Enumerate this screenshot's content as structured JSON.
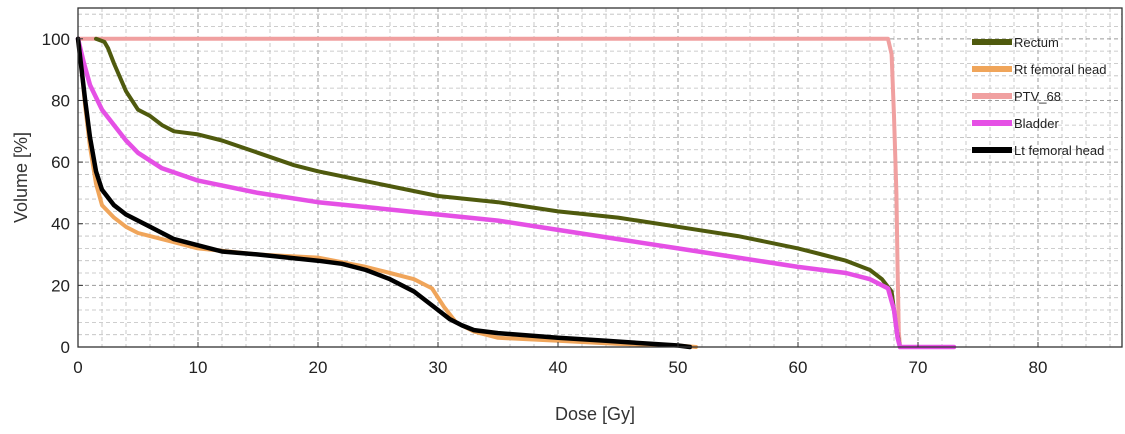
{
  "chart_data": {
    "type": "line",
    "xlabel": "Dose [Gy]",
    "ylabel": "Volume [%]",
    "xlim": [
      0,
      87
    ],
    "ylim": [
      0,
      110
    ],
    "x_ticks": [
      0,
      10,
      20,
      30,
      40,
      50,
      60,
      70,
      80
    ],
    "y_ticks": [
      0,
      20,
      40,
      60,
      80,
      100
    ],
    "grid": true,
    "grid_style": "dashed",
    "minor_grid": true,
    "legend_position": "top-right",
    "series": [
      {
        "name": "Rectum",
        "color": "#4f5a0e",
        "points": [
          [
            1.5,
            100
          ],
          [
            2.2,
            99
          ],
          [
            2.5,
            97
          ],
          [
            3,
            92
          ],
          [
            4,
            83
          ],
          [
            5,
            77
          ],
          [
            6,
            75
          ],
          [
            7,
            72
          ],
          [
            8,
            70
          ],
          [
            10,
            69
          ],
          [
            12,
            67
          ],
          [
            15,
            63
          ],
          [
            18,
            59
          ],
          [
            20,
            57
          ],
          [
            25,
            53
          ],
          [
            30,
            49
          ],
          [
            35,
            47
          ],
          [
            40,
            44
          ],
          [
            45,
            42
          ],
          [
            50,
            39
          ],
          [
            55,
            36
          ],
          [
            60,
            32
          ],
          [
            62,
            30
          ],
          [
            64,
            28
          ],
          [
            66,
            25
          ],
          [
            67,
            22
          ],
          [
            67.8,
            18
          ],
          [
            68.2,
            6
          ],
          [
            68.5,
            0
          ],
          [
            73,
            0
          ]
        ]
      },
      {
        "name": "Rt femoral head",
        "color": "#f0a55a",
        "points": [
          [
            0,
            100
          ],
          [
            0.3,
            90
          ],
          [
            0.6,
            78
          ],
          [
            1,
            65
          ],
          [
            1.5,
            53
          ],
          [
            2,
            46
          ],
          [
            3,
            42
          ],
          [
            4,
            39
          ],
          [
            5,
            37
          ],
          [
            6,
            36
          ],
          [
            8,
            34
          ],
          [
            10,
            32
          ],
          [
            15,
            30
          ],
          [
            20,
            29
          ],
          [
            24,
            26
          ],
          [
            26,
            24
          ],
          [
            28,
            22
          ],
          [
            29.5,
            19
          ],
          [
            30.5,
            13
          ],
          [
            31.5,
            8
          ],
          [
            33,
            5
          ],
          [
            35,
            3
          ],
          [
            40,
            2
          ],
          [
            45,
            1
          ],
          [
            50,
            0.5
          ],
          [
            51.5,
            0
          ]
        ]
      },
      {
        "name": "PTV_68",
        "color": "#f0a0a0",
        "points": [
          [
            0,
            100
          ],
          [
            67.5,
            100
          ],
          [
            67.8,
            95
          ],
          [
            68,
            75
          ],
          [
            68.2,
            50
          ],
          [
            68.3,
            25
          ],
          [
            68.4,
            5
          ],
          [
            68.5,
            0
          ]
        ]
      },
      {
        "name": "Bladder",
        "color": "#e550e5",
        "points": [
          [
            0,
            100
          ],
          [
            0.5,
            92
          ],
          [
            1,
            85
          ],
          [
            2,
            77
          ],
          [
            3,
            72
          ],
          [
            4,
            67
          ],
          [
            5,
            63
          ],
          [
            7,
            58
          ],
          [
            10,
            54
          ],
          [
            15,
            50
          ],
          [
            20,
            47
          ],
          [
            25,
            45
          ],
          [
            30,
            43
          ],
          [
            35,
            41
          ],
          [
            40,
            38
          ],
          [
            45,
            35
          ],
          [
            50,
            32
          ],
          [
            55,
            29
          ],
          [
            60,
            26
          ],
          [
            64,
            24
          ],
          [
            66,
            22
          ],
          [
            67.5,
            19
          ],
          [
            68,
            12
          ],
          [
            68.3,
            3
          ],
          [
            68.5,
            0
          ],
          [
            73,
            0
          ]
        ]
      },
      {
        "name": "Lt femoral head",
        "color": "#000000",
        "points": [
          [
            0,
            100
          ],
          [
            0.3,
            90
          ],
          [
            0.6,
            80
          ],
          [
            1,
            68
          ],
          [
            1.5,
            57
          ],
          [
            2,
            51
          ],
          [
            3,
            46
          ],
          [
            4,
            43
          ],
          [
            5,
            41
          ],
          [
            6,
            39
          ],
          [
            8,
            35
          ],
          [
            10,
            33
          ],
          [
            12,
            31
          ],
          [
            15,
            30
          ],
          [
            20,
            28
          ],
          [
            22,
            27
          ],
          [
            24,
            25
          ],
          [
            26,
            22
          ],
          [
            28,
            18
          ],
          [
            30,
            12
          ],
          [
            31,
            9
          ],
          [
            32,
            7
          ],
          [
            33,
            5.5
          ],
          [
            35,
            4.5
          ],
          [
            40,
            3
          ],
          [
            44,
            2
          ],
          [
            46,
            1.5
          ],
          [
            50,
            0.5
          ],
          [
            51,
            0
          ]
        ]
      }
    ]
  }
}
